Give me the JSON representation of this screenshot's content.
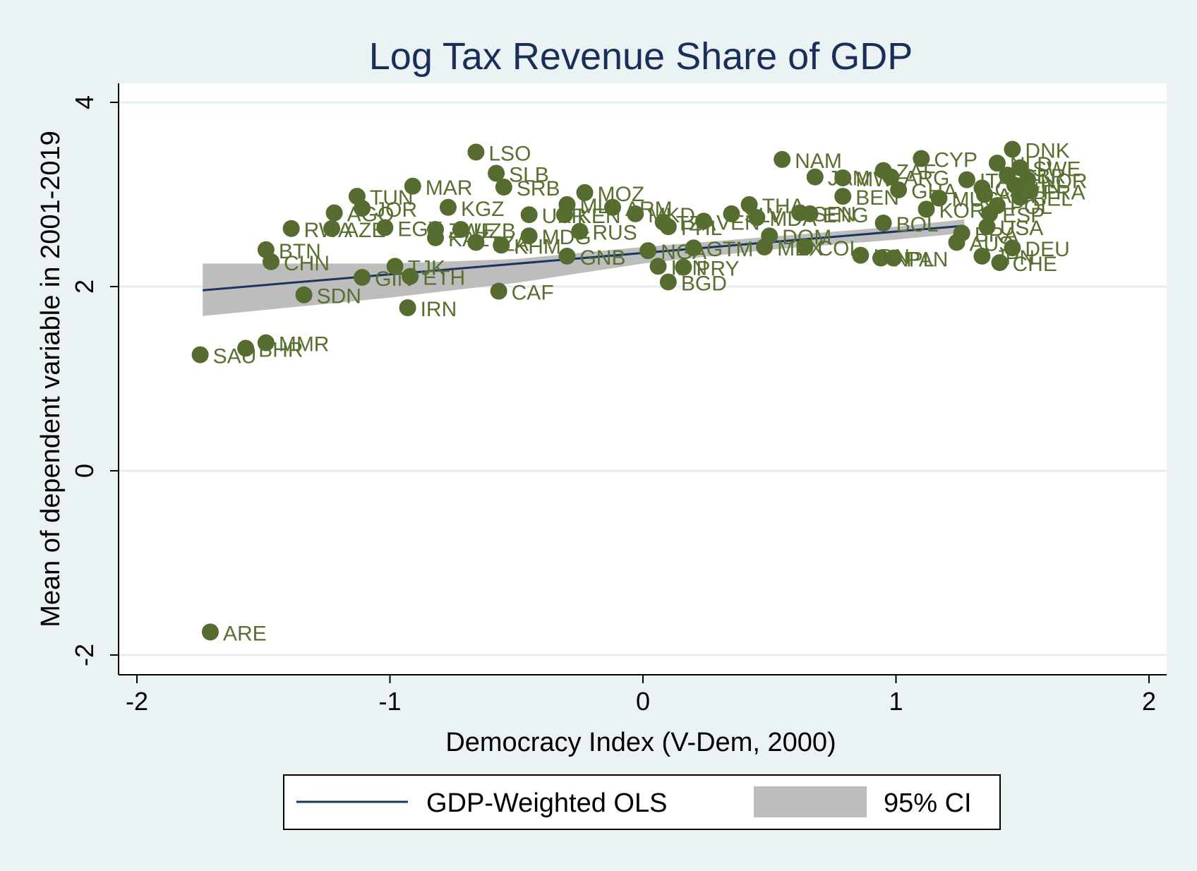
{
  "chart_data": {
    "type": "scatter",
    "title": "Log Tax Revenue Share of GDP",
    "xlabel": "Democracy Index (V-Dem, 2000)",
    "ylabel": "Mean of dependent variable in 2001-2019",
    "xlim": [
      -2.08,
      2.08
    ],
    "ylim": [
      -2.2,
      4.2
    ],
    "xticks": [
      "-2",
      "-1",
      "0",
      "1",
      "2"
    ],
    "xtick_values": [
      -2,
      -1,
      0,
      1,
      2
    ],
    "yticks": [
      "-2",
      "0",
      "2",
      "4"
    ],
    "ytick_values": [
      -2,
      0,
      2,
      4
    ],
    "grid": "horizontal",
    "colors": {
      "points": "#556b2f",
      "labels": "#58702f",
      "fit_line": "#1a3560",
      "ci_band": "#bdbdbd",
      "plot_bg": "#ffffff",
      "page_bg": "#eaf2f3",
      "title": "#1a2e5a"
    },
    "fit": {
      "name": "GDP-Weighted OLS",
      "x": [
        -1.74,
        1.27
      ],
      "y": [
        1.96,
        2.66
      ],
      "ci_x": [
        -1.74,
        -1.0,
        -0.5,
        0.0,
        0.5,
        1.0,
        1.27
      ],
      "ci_lower": [
        1.68,
        1.88,
        2.04,
        2.25,
        2.4,
        2.51,
        2.58
      ],
      "ci_upper": [
        2.25,
        2.25,
        2.3,
        2.43,
        2.54,
        2.65,
        2.73
      ]
    },
    "ci_name": "95% CI",
    "legend": {
      "placement": "bottom",
      "items": [
        "GDP-Weighted OLS",
        "95% CI"
      ]
    },
    "points": [
      {
        "label": "ARE",
        "x": -1.71,
        "y": -1.75
      },
      {
        "label": "SAU",
        "x": -1.75,
        "y": 1.26
      },
      {
        "label": "BHR",
        "x": -1.57,
        "y": 1.33
      },
      {
        "label": "MMR",
        "x": -1.49,
        "y": 1.39
      },
      {
        "label": "BTN",
        "x": -1.49,
        "y": 2.4
      },
      {
        "label": "CHN",
        "x": -1.47,
        "y": 2.27
      },
      {
        "label": "RWA",
        "x": -1.39,
        "y": 2.63
      },
      {
        "label": "SDN",
        "x": -1.34,
        "y": 1.91
      },
      {
        "label": "AZE",
        "x": -1.23,
        "y": 2.63
      },
      {
        "label": "AGO",
        "x": -1.22,
        "y": 2.8
      },
      {
        "label": "TUN",
        "x": -1.13,
        "y": 2.98
      },
      {
        "label": "JOR",
        "x": -1.11,
        "y": 2.85
      },
      {
        "label": "GIN",
        "x": -1.11,
        "y": 2.1
      },
      {
        "label": "EGY",
        "x": -1.02,
        "y": 2.64
      },
      {
        "label": "TJK",
        "x": -0.98,
        "y": 2.22
      },
      {
        "label": "IRN",
        "x": -0.93,
        "y": 1.77
      },
      {
        "label": "ETH",
        "x": -0.92,
        "y": 2.11
      },
      {
        "label": "MAR",
        "x": -0.91,
        "y": 3.09
      },
      {
        "label": "ZWE",
        "x": -0.82,
        "y": 2.62
      },
      {
        "label": "KAZ",
        "x": -0.82,
        "y": 2.53
      },
      {
        "label": "KGZ",
        "x": -0.77,
        "y": 2.86
      },
      {
        "label": "UZB",
        "x": -0.72,
        "y": 2.62
      },
      {
        "label": "TZA",
        "x": -0.66,
        "y": 2.48
      },
      {
        "label": "LSO",
        "x": -0.66,
        "y": 3.46
      },
      {
        "label": "CAF",
        "x": -0.57,
        "y": 1.95
      },
      {
        "label": "SLB",
        "x": -0.58,
        "y": 3.23
      },
      {
        "label": "SRB",
        "x": -0.55,
        "y": 3.08
      },
      {
        "label": "KHM",
        "x": -0.56,
        "y": 2.45
      },
      {
        "label": "UKR",
        "x": -0.45,
        "y": 2.78
      },
      {
        "label": "MDG",
        "x": -0.45,
        "y": 2.55
      },
      {
        "label": "GNB",
        "x": -0.3,
        "y": 2.33
      },
      {
        "label": "MOZ",
        "x": -0.23,
        "y": 3.02
      },
      {
        "label": "RUS",
        "x": -0.25,
        "y": 2.6
      },
      {
        "label": "MLI",
        "x": -0.3,
        "y": 2.89
      },
      {
        "label": "KEN",
        "x": -0.31,
        "y": 2.78
      },
      {
        "label": "ARM",
        "x": -0.12,
        "y": 2.86
      },
      {
        "label": "MKD",
        "x": -0.03,
        "y": 2.79
      },
      {
        "label": "NGA",
        "x": 0.02,
        "y": 2.39
      },
      {
        "label": "PHL",
        "x": 0.1,
        "y": 2.65
      },
      {
        "label": "TZA",
        "x": 0.08,
        "y": 2.7
      },
      {
        "label": "IDN",
        "x": 0.06,
        "y": 2.22
      },
      {
        "label": "BGD",
        "x": 0.1,
        "y": 2.05
      },
      {
        "label": "PRY",
        "x": 0.16,
        "y": 2.21
      },
      {
        "label": "GTM",
        "x": 0.2,
        "y": 2.42
      },
      {
        "label": "VEN",
        "x": 0.24,
        "y": 2.71
      },
      {
        "label": "SLV",
        "x": 0.35,
        "y": 2.79
      },
      {
        "label": "THA",
        "x": 0.42,
        "y": 2.89
      },
      {
        "label": "MDA",
        "x": 0.45,
        "y": 2.75
      },
      {
        "label": "DOM",
        "x": 0.5,
        "y": 2.55
      },
      {
        "label": "MEX",
        "x": 0.48,
        "y": 2.43
      },
      {
        "label": "NAM",
        "x": 0.55,
        "y": 3.38
      },
      {
        "label": "SEN",
        "x": 0.62,
        "y": 2.8
      },
      {
        "label": "ENG",
        "x": 0.66,
        "y": 2.79
      },
      {
        "label": "COL",
        "x": 0.64,
        "y": 2.43
      },
      {
        "label": "IDN",
        "x": 0.86,
        "y": 2.34
      },
      {
        "label": "JAM",
        "x": 0.68,
        "y": 3.19
      },
      {
        "label": "MWI",
        "x": 0.79,
        "y": 3.18
      },
      {
        "label": "BEN",
        "x": 0.79,
        "y": 2.98
      },
      {
        "label": "ZAF",
        "x": 0.95,
        "y": 3.26
      },
      {
        "label": "BOL",
        "x": 0.95,
        "y": 2.69
      },
      {
        "label": "NPL",
        "x": 0.94,
        "y": 2.31
      },
      {
        "label": "PAN",
        "x": 0.99,
        "y": 2.31
      },
      {
        "label": "ARG",
        "x": 0.98,
        "y": 3.19
      },
      {
        "label": "GHA",
        "x": 1.01,
        "y": 3.05
      },
      {
        "label": "CYP",
        "x": 1.1,
        "y": 3.39
      },
      {
        "label": "KOR",
        "x": 1.12,
        "y": 2.84
      },
      {
        "label": "MUS",
        "x": 1.17,
        "y": 2.96
      },
      {
        "label": "BRA",
        "x": 1.26,
        "y": 2.58
      },
      {
        "label": "AUS",
        "x": 1.24,
        "y": 2.48
      },
      {
        "label": "JPN",
        "x": 1.34,
        "y": 2.33
      },
      {
        "label": "ITA",
        "x": 1.28,
        "y": 3.16
      },
      {
        "label": "CAN",
        "x": 1.34,
        "y": 3.07
      },
      {
        "label": "ESP",
        "x": 1.37,
        "y": 2.79
      },
      {
        "label": "USA",
        "x": 1.36,
        "y": 2.65
      },
      {
        "label": "POL",
        "x": 1.4,
        "y": 2.88
      },
      {
        "label": "DEU",
        "x": 1.46,
        "y": 2.42
      },
      {
        "label": "CHE",
        "x": 1.41,
        "y": 2.26
      },
      {
        "label": "GBR",
        "x": 1.44,
        "y": 3.21
      },
      {
        "label": "SWE",
        "x": 1.49,
        "y": 3.29
      },
      {
        "label": "NOR",
        "x": 1.52,
        "y": 3.16
      },
      {
        "label": "FIN",
        "x": 1.47,
        "y": 3.1
      },
      {
        "label": "NLD",
        "x": 1.4,
        "y": 3.34
      },
      {
        "label": "DNK",
        "x": 1.46,
        "y": 3.49
      },
      {
        "label": "FRA",
        "x": 1.53,
        "y": 3.04
      },
      {
        "label": "BEL",
        "x": 1.49,
        "y": 2.97
      },
      {
        "label": "AUT",
        "x": 1.35,
        "y": 3.0
      }
    ]
  }
}
